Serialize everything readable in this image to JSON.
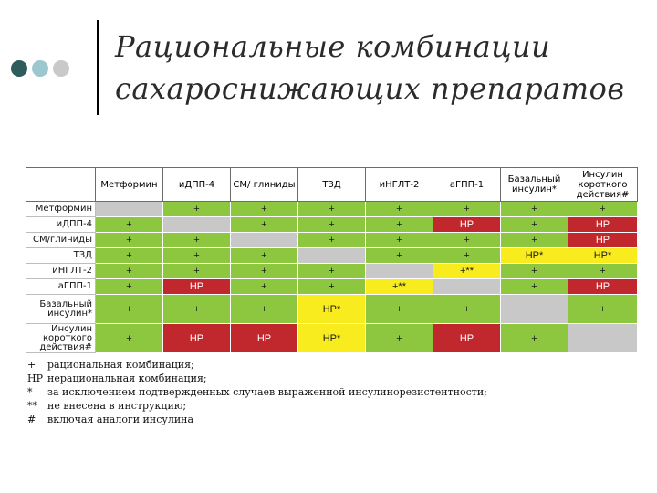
{
  "slide": {
    "title_line1": "Рациональные комбинации",
    "title_line2": "сахароснижающих препаратов"
  },
  "table": {
    "columns": [
      "Метформин",
      "иДПП-4",
      "СМ/ глиниды",
      "ТЗД",
      "иНГЛТ-2",
      "аГПП-1",
      "Базальный инсулин*",
      "Инсулин короткого действия#"
    ],
    "rows": [
      {
        "label": "Метформин",
        "cells": [
          {
            "v": "",
            "c": "gray"
          },
          {
            "v": "+",
            "c": "green"
          },
          {
            "v": "+",
            "c": "green"
          },
          {
            "v": "+",
            "c": "green"
          },
          {
            "v": "+",
            "c": "green"
          },
          {
            "v": "+",
            "c": "green"
          },
          {
            "v": "+",
            "c": "green"
          },
          {
            "v": "+",
            "c": "green"
          }
        ]
      },
      {
        "label": "иДПП-4",
        "cells": [
          {
            "v": "+",
            "c": "green"
          },
          {
            "v": "",
            "c": "gray"
          },
          {
            "v": "+",
            "c": "green"
          },
          {
            "v": "+",
            "c": "green"
          },
          {
            "v": "+",
            "c": "green"
          },
          {
            "v": "НР",
            "c": "red"
          },
          {
            "v": "+",
            "c": "green"
          },
          {
            "v": "НР",
            "c": "red"
          }
        ]
      },
      {
        "label": "СМ/глиниды",
        "cells": [
          {
            "v": "+",
            "c": "green"
          },
          {
            "v": "+",
            "c": "green"
          },
          {
            "v": "",
            "c": "gray"
          },
          {
            "v": "+",
            "c": "green"
          },
          {
            "v": "+",
            "c": "green"
          },
          {
            "v": "+",
            "c": "green"
          },
          {
            "v": "+",
            "c": "green"
          },
          {
            "v": "НР",
            "c": "red"
          }
        ]
      },
      {
        "label": "ТЗД",
        "cells": [
          {
            "v": "+",
            "c": "green"
          },
          {
            "v": "+",
            "c": "green"
          },
          {
            "v": "+",
            "c": "green"
          },
          {
            "v": "",
            "c": "gray"
          },
          {
            "v": "+",
            "c": "green"
          },
          {
            "v": "+",
            "c": "green"
          },
          {
            "v": "НР*",
            "c": "yellow"
          },
          {
            "v": "НР*",
            "c": "yellow"
          }
        ]
      },
      {
        "label": "иНГЛТ-2",
        "cells": [
          {
            "v": "+",
            "c": "green"
          },
          {
            "v": "+",
            "c": "green"
          },
          {
            "v": "+",
            "c": "green"
          },
          {
            "v": "+",
            "c": "green"
          },
          {
            "v": "",
            "c": "gray"
          },
          {
            "v": "+**",
            "c": "yellow"
          },
          {
            "v": "+",
            "c": "green"
          },
          {
            "v": "+",
            "c": "green"
          }
        ]
      },
      {
        "label": "аГПП-1",
        "cells": [
          {
            "v": "+",
            "c": "green"
          },
          {
            "v": "НР",
            "c": "red"
          },
          {
            "v": "+",
            "c": "green"
          },
          {
            "v": "+",
            "c": "green"
          },
          {
            "v": "+**",
            "c": "yellow"
          },
          {
            "v": "",
            "c": "gray"
          },
          {
            "v": "+",
            "c": "green"
          },
          {
            "v": "НР",
            "c": "red"
          }
        ]
      },
      {
        "label": "Базальный инсулин*",
        "cells": [
          {
            "v": "+",
            "c": "green"
          },
          {
            "v": "+",
            "c": "green"
          },
          {
            "v": "+",
            "c": "green"
          },
          {
            "v": "НР*",
            "c": "yellow"
          },
          {
            "v": "+",
            "c": "green"
          },
          {
            "v": "+",
            "c": "green"
          },
          {
            "v": "",
            "c": "gray"
          },
          {
            "v": "+",
            "c": "green"
          }
        ]
      },
      {
        "label": "Инсулин короткого действия#",
        "cells": [
          {
            "v": "+",
            "c": "green"
          },
          {
            "v": "НР",
            "c": "red"
          },
          {
            "v": "НР",
            "c": "red"
          },
          {
            "v": "НР*",
            "c": "yellow"
          },
          {
            "v": "+",
            "c": "green"
          },
          {
            "v": "НР",
            "c": "red"
          },
          {
            "v": "+",
            "c": "green"
          },
          {
            "v": "",
            "c": "gray"
          }
        ]
      }
    ]
  },
  "legend": [
    {
      "symbol": "+",
      "text": "рациональная комбинация;"
    },
    {
      "symbol": "НР",
      "text": "нерациональная комбинация;"
    },
    {
      "symbol": "*",
      "text": "за исключением подтвержденных случаев выраженной инсулинорезистентности;"
    },
    {
      "symbol": "**",
      "text": "не внесена в инструкцию;"
    },
    {
      "symbol": "#",
      "text": "включая аналоги инсулина"
    }
  ],
  "colors": {
    "rational": "#8dc63f",
    "irrational": "#c0282d",
    "conditional": "#f8ec1e",
    "self": "#c8c8c8"
  }
}
